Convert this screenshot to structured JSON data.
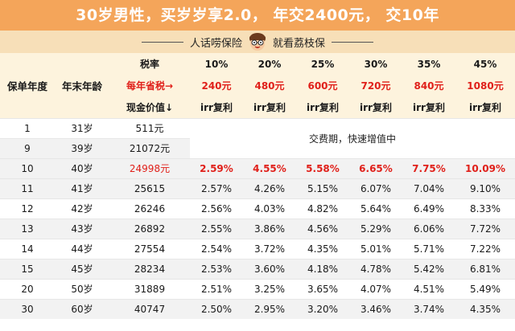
{
  "title": "30岁男性，买岁岁享2.0， 年交2400元， 交10年",
  "subtitle": {
    "left": "人话唠保险",
    "right": "就看荔枝保"
  },
  "header": {
    "col_policy_year": "保单年度",
    "col_age": "年末年龄",
    "tax_rate_label": "税率",
    "tax_saved_label": "每年省税→",
    "cash_value_label": "现金价值↓",
    "tax_rates": [
      "10%",
      "20%",
      "25%",
      "30%",
      "35%",
      "45%"
    ],
    "tax_saved": [
      "240元",
      "480元",
      "600元",
      "720元",
      "840元",
      "1080元"
    ],
    "irr_label": "irr复利"
  },
  "merged_note": "交费期，快速增值中",
  "rows": [
    {
      "year": "1",
      "age": "31岁",
      "cash": "511元",
      "irr": []
    },
    {
      "year": "9",
      "age": "39岁",
      "cash": "21072元",
      "irr": []
    },
    {
      "year": "10",
      "age": "40岁",
      "cash": "24998元",
      "irr": [
        "2.59%",
        "4.55%",
        "5.58%",
        "6.65%",
        "7.75%",
        "10.09%"
      ]
    },
    {
      "year": "11",
      "age": "41岁",
      "cash": "25615",
      "irr": [
        "2.57%",
        "4.26%",
        "5.15%",
        "6.07%",
        "7.04%",
        "9.10%"
      ]
    },
    {
      "year": "12",
      "age": "42岁",
      "cash": "26246",
      "irr": [
        "2.56%",
        "4.03%",
        "4.82%",
        "5.64%",
        "6.49%",
        "8.33%"
      ]
    },
    {
      "year": "13",
      "age": "43岁",
      "cash": "26892",
      "irr": [
        "2.55%",
        "3.86%",
        "4.56%",
        "5.29%",
        "6.06%",
        "7.72%"
      ]
    },
    {
      "year": "14",
      "age": "44岁",
      "cash": "27554",
      "irr": [
        "2.54%",
        "3.72%",
        "4.35%",
        "5.01%",
        "5.71%",
        "7.22%"
      ]
    },
    {
      "year": "15",
      "age": "45岁",
      "cash": "28234",
      "irr": [
        "2.53%",
        "3.60%",
        "4.18%",
        "4.78%",
        "5.42%",
        "6.81%"
      ]
    },
    {
      "year": "20",
      "age": "50岁",
      "cash": "31889",
      "irr": [
        "2.51%",
        "3.25%",
        "3.65%",
        "4.07%",
        "4.51%",
        "5.49%"
      ]
    },
    {
      "year": "30",
      "age": "60岁",
      "cash": "40747",
      "irr": [
        "2.50%",
        "2.95%",
        "3.20%",
        "3.46%",
        "3.74%",
        "4.35%"
      ]
    }
  ]
}
